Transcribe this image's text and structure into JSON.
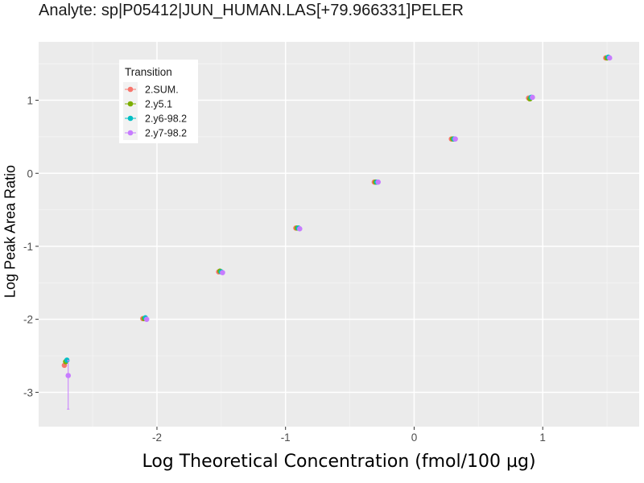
{
  "chart_data": {
    "type": "scatter",
    "title": "Analyte: sp|P05412|JUN_HUMAN.LAS[+79.966331]PELER",
    "xlabel": "Log Theoretical Concentration (fmol/100 µg)",
    "ylabel": "Log Peak Area Ratio",
    "xlim": [
      -2.92,
      1.75
    ],
    "ylim": [
      -3.47,
      1.8
    ],
    "x_ticks": [
      -2,
      -1,
      0,
      1
    ],
    "y_ticks": [
      -3,
      -2,
      -1,
      0,
      1
    ],
    "grid": true,
    "legend": {
      "title": "Transition",
      "position": "top-left"
    },
    "series": [
      {
        "name": "2.SUM.",
        "color": "#F8766D",
        "points": [
          {
            "x": -2.72,
            "y": -2.63
          },
          {
            "x": -2.11,
            "y": -1.99
          },
          {
            "x": -1.52,
            "y": -1.35
          },
          {
            "x": -0.92,
            "y": -0.75
          },
          {
            "x": -0.31,
            "y": -0.12
          },
          {
            "x": 0.29,
            "y": 0.47
          },
          {
            "x": 0.89,
            "y": 1.03
          },
          {
            "x": 1.49,
            "y": 1.58
          }
        ]
      },
      {
        "name": "2.y5.1",
        "color": "#7CAE00",
        "points": [
          {
            "x": -2.71,
            "y": -2.58
          },
          {
            "x": -2.1,
            "y": -1.99
          },
          {
            "x": -1.51,
            "y": -1.34
          },
          {
            "x": -0.91,
            "y": -0.75
          },
          {
            "x": -0.3,
            "y": -0.12
          },
          {
            "x": 0.3,
            "y": 0.47
          },
          {
            "x": 0.9,
            "y": 1.02
          },
          {
            "x": 1.5,
            "y": 1.58
          }
        ]
      },
      {
        "name": "2.y6-98.2",
        "color": "#00BFC4",
        "points": [
          {
            "x": -2.7,
            "y": -2.56
          },
          {
            "x": -2.09,
            "y": -1.98
          },
          {
            "x": -1.5,
            "y": -1.35
          },
          {
            "x": -0.9,
            "y": -0.75
          },
          {
            "x": -0.29,
            "y": -0.12
          },
          {
            "x": 0.31,
            "y": 0.47
          },
          {
            "x": 0.91,
            "y": 1.04
          },
          {
            "x": 1.51,
            "y": 1.59
          }
        ]
      },
      {
        "name": "2.y7-98.2",
        "color": "#C77CFF",
        "points": [
          {
            "x": -2.69,
            "y": -2.77,
            "ymin": -3.23,
            "ymax": -2.56
          },
          {
            "x": -2.08,
            "y": -2.0
          },
          {
            "x": -1.49,
            "y": -1.36
          },
          {
            "x": -0.89,
            "y": -0.76
          },
          {
            "x": -0.28,
            "y": -0.12
          },
          {
            "x": 0.32,
            "y": 0.47
          },
          {
            "x": 0.92,
            "y": 1.04
          },
          {
            "x": 1.52,
            "y": 1.58
          }
        ]
      }
    ]
  }
}
